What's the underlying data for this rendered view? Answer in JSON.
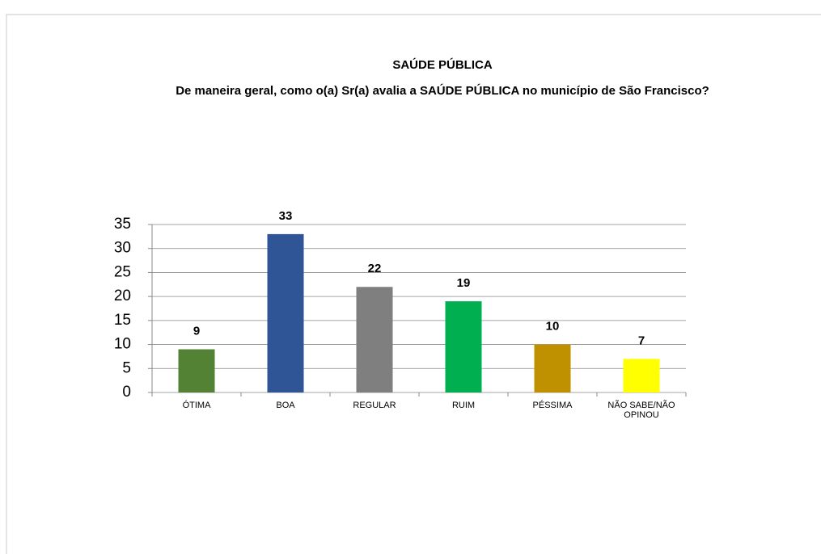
{
  "chart_data": {
    "type": "bar",
    "title": "SAÚDE PÚBLICA",
    "subtitle": "De maneira geral, como o(a) Sr(a) avalia a SAÚDE PÚBLICA no município de São Francisco?",
    "categories": [
      "ÓTIMA",
      "BOA",
      "REGULAR",
      "RUIM",
      "PÉSSIMA",
      "NÃO SABE/NÃO OPINOU"
    ],
    "values": [
      9,
      33,
      22,
      19,
      10,
      7
    ],
    "colors": [
      "#548235",
      "#2f5597",
      "#7f7f7f",
      "#00b050",
      "#bf9000",
      "#ffff00"
    ],
    "ylim": [
      0,
      35
    ],
    "yticks": [
      0,
      5,
      10,
      15,
      20,
      25,
      30,
      35
    ],
    "grid": true
  }
}
